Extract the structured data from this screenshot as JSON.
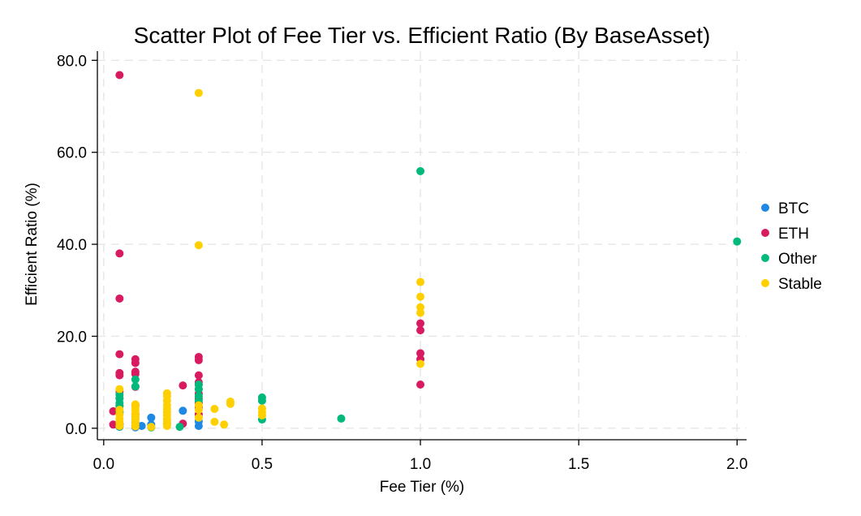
{
  "chart_data": {
    "type": "scatter",
    "title": "Scatter Plot of Fee Tier vs. Efficient Ratio (By BaseAsset)",
    "xlabel": "Fee Tier (%)",
    "ylabel": "Efficient Ratio (%)",
    "xlim": [
      -0.02,
      2.03
    ],
    "ylim": [
      -2.5,
      82.0
    ],
    "x_ticks": [
      0.0,
      0.5,
      1.0,
      1.5,
      2.0
    ],
    "x_tick_labels": [
      "0.0",
      "0.5",
      "1.0",
      "1.5",
      "2.0"
    ],
    "y_ticks": [
      0.0,
      20.0,
      40.0,
      60.0,
      80.0
    ],
    "y_tick_labels": [
      "0.0",
      "20.0",
      "40.0",
      "60.0",
      "80.0"
    ],
    "grid": true,
    "legend_position": "right",
    "series": [
      {
        "name": "BTC",
        "color": "#1e88e5",
        "points": [
          [
            0.05,
            0.3
          ],
          [
            0.05,
            0.8
          ],
          [
            0.1,
            0.2
          ],
          [
            0.1,
            0.6
          ],
          [
            0.1,
            1.2
          ],
          [
            0.1,
            2.0
          ],
          [
            0.12,
            0.5
          ],
          [
            0.15,
            0.8
          ],
          [
            0.15,
            2.3
          ],
          [
            0.2,
            1.0
          ],
          [
            0.25,
            3.8
          ],
          [
            0.3,
            0.5
          ],
          [
            0.3,
            1.5
          ]
        ]
      },
      {
        "name": "ETH",
        "color": "#d81b60",
        "points": [
          [
            0.05,
            76.8
          ],
          [
            0.05,
            38.0
          ],
          [
            0.05,
            28.2
          ],
          [
            0.05,
            16.1
          ],
          [
            0.05,
            12.0
          ],
          [
            0.05,
            11.5
          ],
          [
            0.05,
            8.0
          ],
          [
            0.05,
            6.5
          ],
          [
            0.05,
            5.0
          ],
          [
            0.05,
            3.5
          ],
          [
            0.03,
            3.7
          ],
          [
            0.03,
            0.8
          ],
          [
            0.05,
            1.0
          ],
          [
            0.1,
            15.0
          ],
          [
            0.1,
            14.2
          ],
          [
            0.1,
            12.3
          ],
          [
            0.1,
            11.8
          ],
          [
            0.1,
            9.0
          ],
          [
            0.1,
            5.0
          ],
          [
            0.1,
            3.0
          ],
          [
            0.1,
            0.5
          ],
          [
            0.25,
            9.3
          ],
          [
            0.25,
            1.0
          ],
          [
            0.3,
            15.5
          ],
          [
            0.3,
            14.8
          ],
          [
            0.3,
            11.5
          ],
          [
            0.3,
            10.0
          ],
          [
            0.3,
            9.5
          ],
          [
            0.3,
            8.5
          ],
          [
            0.3,
            7.5
          ],
          [
            0.3,
            6.5
          ],
          [
            0.3,
            5.5
          ],
          [
            0.3,
            4.5
          ],
          [
            0.3,
            3.0
          ],
          [
            1.0,
            22.8
          ],
          [
            1.0,
            21.3
          ],
          [
            1.0,
            16.3
          ],
          [
            1.0,
            15.0
          ],
          [
            1.0,
            9.5
          ]
        ]
      },
      {
        "name": "Other",
        "color": "#00b97a",
        "points": [
          [
            2.0,
            40.6
          ],
          [
            1.0,
            55.9
          ],
          [
            0.75,
            2.1
          ],
          [
            0.5,
            6.7
          ],
          [
            0.5,
            6.0
          ],
          [
            0.5,
            1.9
          ],
          [
            0.3,
            9.5
          ],
          [
            0.3,
            8.5
          ],
          [
            0.3,
            7.0
          ],
          [
            0.3,
            6.0
          ],
          [
            0.24,
            0.3
          ],
          [
            0.1,
            10.6
          ],
          [
            0.1,
            9.1
          ],
          [
            0.1,
            2.5
          ],
          [
            0.05,
            7.3
          ],
          [
            0.05,
            6.5
          ],
          [
            0.05,
            5.5
          ],
          [
            0.05,
            4.8
          ],
          [
            0.05,
            3.6
          ],
          [
            0.05,
            0.4
          ],
          [
            0.15,
            0.2
          ]
        ]
      },
      {
        "name": "Stable",
        "color": "#ffd000",
        "points": [
          [
            0.3,
            72.9
          ],
          [
            0.3,
            39.8
          ],
          [
            1.0,
            31.8
          ],
          [
            1.0,
            28.6
          ],
          [
            1.0,
            26.3
          ],
          [
            1.0,
            25.1
          ],
          [
            1.0,
            14.0
          ],
          [
            0.5,
            4.3
          ],
          [
            0.5,
            3.5
          ],
          [
            0.5,
            2.8
          ],
          [
            0.4,
            5.8
          ],
          [
            0.4,
            5.3
          ],
          [
            0.35,
            4.2
          ],
          [
            0.35,
            1.4
          ],
          [
            0.38,
            0.8
          ],
          [
            0.3,
            5.0
          ],
          [
            0.3,
            4.0
          ],
          [
            0.3,
            2.3
          ],
          [
            0.2,
            7.6
          ],
          [
            0.2,
            7.0
          ],
          [
            0.2,
            6.0
          ],
          [
            0.2,
            5.0
          ],
          [
            0.2,
            4.2
          ],
          [
            0.2,
            3.5
          ],
          [
            0.2,
            2.8
          ],
          [
            0.2,
            2.0
          ],
          [
            0.2,
            1.5
          ],
          [
            0.2,
            1.0
          ],
          [
            0.2,
            0.5
          ],
          [
            0.15,
            0.3
          ],
          [
            0.1,
            5.2
          ],
          [
            0.1,
            4.5
          ],
          [
            0.1,
            3.8
          ],
          [
            0.1,
            3.0
          ],
          [
            0.1,
            2.4
          ],
          [
            0.1,
            1.8
          ],
          [
            0.1,
            1.0
          ],
          [
            0.1,
            0.4
          ],
          [
            0.05,
            8.5
          ],
          [
            0.05,
            4.0
          ],
          [
            0.05,
            3.0
          ],
          [
            0.05,
            2.0
          ],
          [
            0.05,
            1.2
          ],
          [
            0.05,
            0.5
          ]
        ]
      }
    ]
  }
}
